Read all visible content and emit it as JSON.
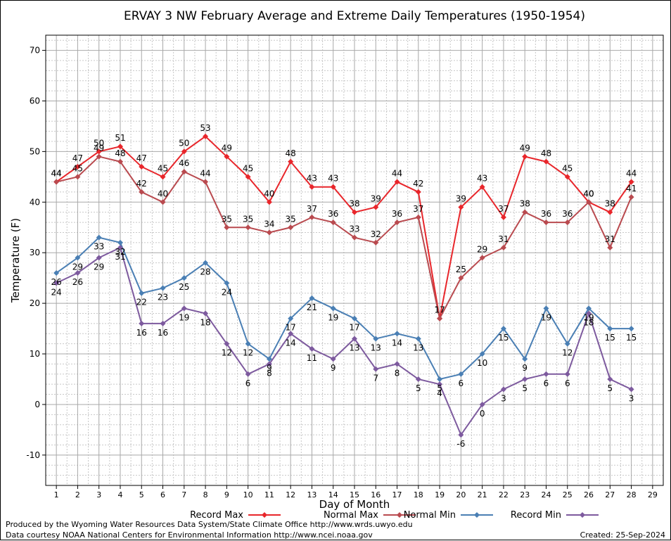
{
  "chart_data": {
    "type": "line",
    "title": "ERVAY 3 NW February Average and Extreme Daily Temperatures (1950-1954)",
    "xlabel": "Day of Month",
    "ylabel": "Temperature (F)",
    "xlim": [
      0.5,
      29.5
    ],
    "ylim": [
      -16,
      73
    ],
    "x_ticks": [
      1,
      2,
      3,
      4,
      5,
      6,
      7,
      8,
      9,
      10,
      11,
      12,
      13,
      14,
      15,
      16,
      17,
      18,
      19,
      20,
      21,
      22,
      23,
      24,
      25,
      26,
      27,
      28,
      29
    ],
    "y_ticks": [
      -10,
      0,
      10,
      20,
      30,
      40,
      50,
      60,
      70
    ],
    "grid": true,
    "legend_position": "bottom",
    "x": [
      1,
      2,
      3,
      4,
      5,
      6,
      7,
      8,
      9,
      10,
      11,
      12,
      13,
      14,
      15,
      16,
      17,
      18,
      19,
      20,
      21,
      22,
      23,
      24,
      25,
      26,
      27,
      28
    ],
    "series": [
      {
        "name": "Record Max",
        "color": "#e8262b",
        "values": [
          44,
          47,
          50,
          51,
          47,
          45,
          50,
          53,
          49,
          45,
          40,
          48,
          43,
          43,
          38,
          39,
          44,
          42,
          17,
          39,
          43,
          37,
          49,
          48,
          45,
          40,
          38,
          44
        ],
        "label_pos": "above"
      },
      {
        "name": "Normal Max",
        "color": "#b94a4f",
        "values": [
          44,
          45,
          49,
          48,
          42,
          40,
          46,
          44,
          35,
          35,
          34,
          35,
          37,
          36,
          33,
          32,
          36,
          37,
          17,
          25,
          29,
          31,
          38,
          36,
          36,
          40,
          31,
          41
        ],
        "label_pos": "above"
      },
      {
        "name": "Normal Min",
        "color": "#4a7fb4",
        "values": [
          26,
          29,
          33,
          32,
          22,
          23,
          25,
          28,
          24,
          12,
          9,
          17,
          21,
          19,
          17,
          13,
          14,
          13,
          5,
          6,
          10,
          15,
          9,
          19,
          12,
          19,
          15,
          15
        ],
        "label_pos": "below"
      },
      {
        "name": "Record Min",
        "color": "#7d5a9e",
        "values": [
          24,
          26,
          29,
          31,
          16,
          16,
          19,
          18,
          12,
          6,
          8,
          14,
          11,
          9,
          13,
          7,
          8,
          5,
          4,
          -6,
          0,
          3,
          5,
          6,
          6,
          18,
          5,
          3
        ],
        "label_pos": "below"
      }
    ]
  },
  "footer": {
    "produced_by": "Produced by the Wyoming Water Resources Data System/State Climate Office http://www.wrds.uwyo.edu",
    "courtesy": "Data courtesy NOAA National Centers for Environmental Information http://www.ncei.noaa.gov",
    "created": "Created:  25-Sep-2024"
  }
}
